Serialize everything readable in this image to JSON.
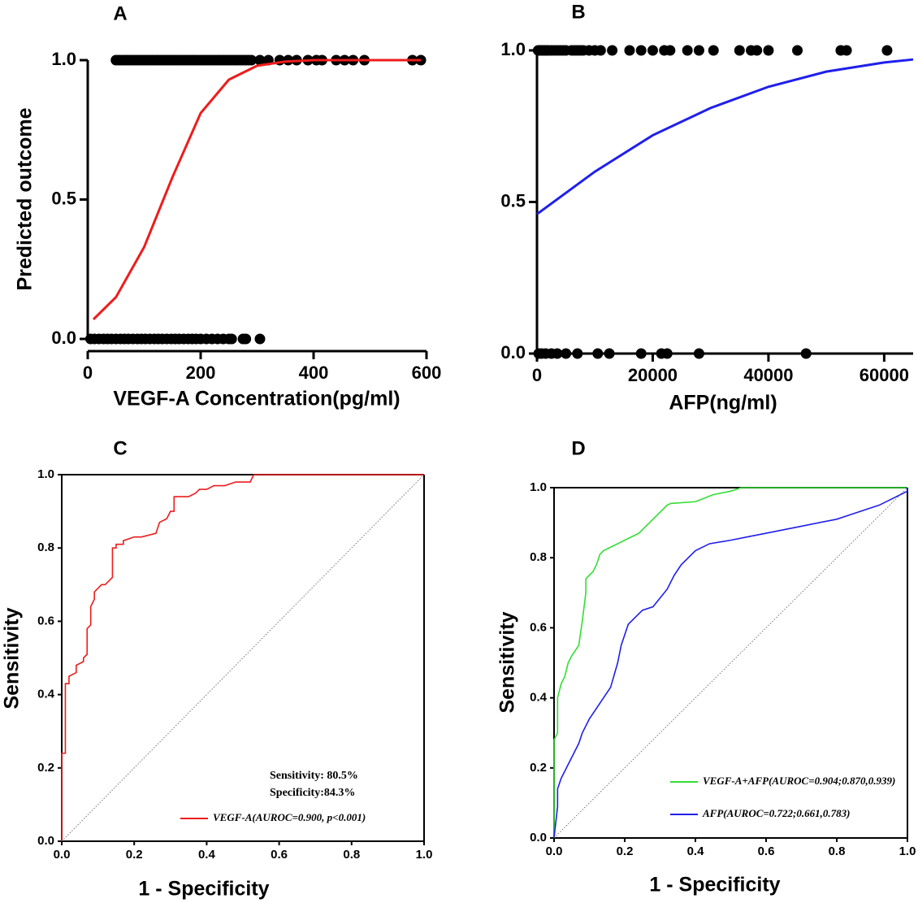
{
  "chart_data": [
    {
      "type": "scatter",
      "title": "A",
      "xlabel": "VEGF-A Concentration(pg/ml)",
      "ylabel": "Predicted outcome",
      "xlim": [
        0,
        600
      ],
      "xticks": [
        0,
        200,
        400,
        600
      ],
      "ylim": [
        0,
        1
      ],
      "yticks": [
        {
          "value": 0,
          "label": "0.0"
        },
        {
          "value": 0.5,
          "label": "0.5"
        },
        {
          "value": 1,
          "label": "1.0"
        }
      ],
      "series": [
        {
          "type": "scatter",
          "color": "#000000",
          "x": [
            50,
            55,
            60,
            65,
            70,
            75,
            80,
            85,
            90,
            95,
            100,
            105,
            110,
            115,
            120,
            125,
            130,
            135,
            140,
            145,
            150,
            155,
            160,
            165,
            170,
            175,
            180,
            185,
            190,
            195,
            200,
            205,
            210,
            215,
            220,
            225,
            230,
            235,
            240,
            245,
            250,
            255,
            260,
            265,
            270,
            275,
            280,
            285,
            290,
            305,
            320,
            340,
            355,
            370,
            390,
            405,
            415,
            440,
            455,
            470,
            490,
            575,
            590
          ],
          "values": [
            1,
            1,
            1,
            1,
            1,
            1,
            1,
            1,
            1,
            1,
            1,
            1,
            1,
            1,
            1,
            1,
            1,
            1,
            1,
            1,
            1,
            1,
            1,
            1,
            1,
            1,
            1,
            1,
            1,
            1,
            1,
            1,
            1,
            1,
            1,
            1,
            1,
            1,
            1,
            1,
            1,
            1,
            1,
            1,
            1,
            1,
            1,
            1,
            1,
            1,
            1,
            1,
            1,
            1,
            1,
            1,
            1,
            1,
            1,
            1,
            1,
            1,
            1
          ]
        },
        {
          "type": "scatter",
          "color": "#000000",
          "x": [
            5,
            12,
            20,
            28,
            35,
            42,
            50,
            58,
            65,
            72,
            80,
            88,
            95,
            102,
            110,
            118,
            125,
            132,
            140,
            148,
            155,
            162,
            170,
            178,
            185,
            192,
            200,
            210,
            220,
            230,
            240,
            250,
            255,
            275,
            280,
            305
          ],
          "values": [
            0,
            0,
            0,
            0,
            0,
            0,
            0,
            0,
            0,
            0,
            0,
            0,
            0,
            0,
            0,
            0,
            0,
            0,
            0,
            0,
            0,
            0,
            0,
            0,
            0,
            0,
            0,
            0,
            0,
            0,
            0,
            0,
            0,
            0,
            0,
            0
          ]
        },
        {
          "type": "line",
          "color": "#ee1c1c",
          "x": [
            10,
            50,
            100,
            150,
            200,
            250,
            300,
            350,
            400,
            450,
            500,
            590
          ],
          "values": [
            0.07,
            0.15,
            0.33,
            0.58,
            0.81,
            0.93,
            0.98,
            0.995,
            1,
            1,
            1,
            1
          ]
        }
      ]
    },
    {
      "type": "scatter",
      "title": "B",
      "xlabel": "AFP(ng/ml)",
      "xlim": [
        0,
        65000
      ],
      "xticks": [
        0,
        20000,
        40000,
        60000
      ],
      "ylim": [
        0,
        1
      ],
      "yticks": [
        {
          "value": 0,
          "label": "0.0"
        },
        {
          "value": 0.5,
          "label": "0.5"
        },
        {
          "value": 1,
          "label": "1.0"
        }
      ],
      "series": [
        {
          "type": "scatter",
          "color": "#000000",
          "x": [
            200,
            500,
            800,
            1100,
            1400,
            1700,
            2000,
            2500,
            3000,
            3500,
            4000,
            4500,
            5000,
            6000,
            6500,
            7000,
            7500,
            8000,
            9000,
            10000,
            11000,
            13000,
            16000,
            18000,
            20000,
            22000,
            23000,
            26000,
            28000,
            30500,
            35000,
            37000,
            38000,
            40000,
            45000,
            52500,
            53500,
            60500
          ],
          "values": [
            1,
            1,
            1,
            1,
            1,
            1,
            1,
            1,
            1,
            1,
            1,
            1,
            1,
            1,
            1,
            1,
            1,
            1,
            1,
            1,
            1,
            1,
            1,
            1,
            1,
            1,
            1,
            1,
            1,
            1,
            1,
            1,
            1,
            1,
            1,
            1,
            1,
            1
          ]
        },
        {
          "type": "scatter",
          "color": "#000000",
          "x": [
            300,
            800,
            1500,
            2500,
            3500,
            5000,
            7000,
            10500,
            12500,
            18000,
            21500,
            22500,
            28000,
            46500
          ],
          "values": [
            0,
            0,
            0,
            0,
            0,
            0,
            0,
            0,
            0,
            0,
            0,
            0,
            0,
            0
          ]
        },
        {
          "type": "line",
          "color": "#1f1fee",
          "x": [
            0,
            10000,
            20000,
            30000,
            40000,
            50000,
            60000,
            65000
          ],
          "values": [
            0.46,
            0.6,
            0.72,
            0.81,
            0.88,
            0.93,
            0.96,
            0.97
          ]
        }
      ]
    },
    {
      "type": "roc",
      "title": "C",
      "xlabel": "1 - Specificity",
      "ylabel": "Sensitivity",
      "annotations": [
        "Sensitivity: 80.5%",
        "Specificity:84.3%"
      ],
      "xlim": [
        0,
        1
      ],
      "xticks": [
        {
          "value": 0,
          "label": "0.0"
        },
        {
          "value": 0.2,
          "label": "0.2"
        },
        {
          "value": 0.4,
          "label": "0.4"
        },
        {
          "value": 0.6,
          "label": "0.6"
        },
        {
          "value": 0.8,
          "label": "0.8"
        },
        {
          "value": 1,
          "label": "1.0"
        }
      ],
      "ylim": [
        0,
        1
      ],
      "yticks": [
        {
          "value": 0,
          "label": "0.0"
        },
        {
          "value": 0.2,
          "label": "0.2"
        },
        {
          "value": 0.4,
          "label": "0.4"
        },
        {
          "value": 0.6,
          "label": "0.6"
        },
        {
          "value": 0.8,
          "label": "0.8"
        },
        {
          "value": 1,
          "label": "1.0"
        }
      ],
      "series": [
        {
          "type": "line",
          "color": "#ee1c1c",
          "name": "VEGF-A(AUROC=0.900,   p<0.001)",
          "x": [
            0,
            0,
            0.01,
            0.01,
            0.02,
            0.02,
            0.04,
            0.04,
            0.06,
            0.06,
            0.07,
            0.07,
            0.08,
            0.08,
            0.09,
            0.09,
            0.1,
            0.11,
            0.12,
            0.14,
            0.14,
            0.15,
            0.15,
            0.17,
            0.17,
            0.2,
            0.22,
            0.26,
            0.27,
            0.29,
            0.3,
            0.31,
            0.31,
            0.35,
            0.37,
            0.38,
            0.4,
            0.42,
            0.45,
            0.48,
            0.52,
            0.53,
            1.0
          ],
          "values": [
            0,
            0.24,
            0.24,
            0.43,
            0.43,
            0.45,
            0.46,
            0.48,
            0.49,
            0.5,
            0.51,
            0.58,
            0.59,
            0.64,
            0.66,
            0.68,
            0.69,
            0.7,
            0.7,
            0.72,
            0.8,
            0.8,
            0.81,
            0.81,
            0.82,
            0.83,
            0.83,
            0.84,
            0.87,
            0.88,
            0.9,
            0.9,
            0.94,
            0.94,
            0.95,
            0.96,
            0.96,
            0.97,
            0.97,
            0.98,
            0.98,
            1.0,
            1.0
          ]
        },
        {
          "type": "diagonal",
          "color": "#555555",
          "x": [
            0,
            1
          ],
          "values": [
            0,
            1
          ]
        }
      ]
    },
    {
      "type": "roc",
      "title": "D",
      "xlabel": "1 - Specificity",
      "ylabel": "Sensitivity",
      "xlim": [
        0,
        1
      ],
      "xticks": [
        {
          "value": 0,
          "label": "0.0"
        },
        {
          "value": 0.2,
          "label": "0.2"
        },
        {
          "value": 0.4,
          "label": "0.4"
        },
        {
          "value": 0.6,
          "label": "0.6"
        },
        {
          "value": 0.8,
          "label": "0.8"
        },
        {
          "value": 1,
          "label": "1.0"
        }
      ],
      "ylim": [
        0,
        1
      ],
      "yticks": [
        {
          "value": 0,
          "label": "0.0"
        },
        {
          "value": 0.2,
          "label": "0.2"
        },
        {
          "value": 0.4,
          "label": "0.4"
        },
        {
          "value": 0.6,
          "label": "0.6"
        },
        {
          "value": 0.8,
          "label": "0.8"
        },
        {
          "value": 1,
          "label": "1.0"
        }
      ],
      "series": [
        {
          "type": "line",
          "color": "#33dd33",
          "name": "VEGF-A+AFP(AUROC=0.904;0.870,0.939)",
          "x": [
            0,
            0,
            0.01,
            0.01,
            0.02,
            0.03,
            0.04,
            0.05,
            0.07,
            0.08,
            0.09,
            0.09,
            0.1,
            0.11,
            0.12,
            0.13,
            0.14,
            0.16,
            0.2,
            0.24,
            0.27,
            0.3,
            0.32,
            0.33,
            0.4,
            0.45,
            0.5,
            0.53,
            1.0
          ],
          "values": [
            0,
            0.28,
            0.3,
            0.4,
            0.44,
            0.46,
            0.5,
            0.52,
            0.55,
            0.62,
            0.7,
            0.74,
            0.75,
            0.76,
            0.78,
            0.81,
            0.82,
            0.83,
            0.85,
            0.87,
            0.9,
            0.93,
            0.95,
            0.955,
            0.96,
            0.98,
            0.99,
            1.0,
            1.0
          ]
        },
        {
          "type": "line",
          "color": "#1f1fee",
          "name": "AFP(AUROC=0.722;0.661,0.783)",
          "x": [
            0,
            0.01,
            0.01,
            0.02,
            0.03,
            0.05,
            0.07,
            0.08,
            0.1,
            0.12,
            0.14,
            0.16,
            0.18,
            0.19,
            0.2,
            0.21,
            0.23,
            0.25,
            0.28,
            0.32,
            0.34,
            0.36,
            0.4,
            0.44,
            0.5,
            0.55,
            0.6,
            0.7,
            0.8,
            0.86,
            0.92,
            0.96,
            0.98,
            1.0,
            1.0
          ],
          "values": [
            0,
            0.09,
            0.14,
            0.17,
            0.19,
            0.23,
            0.27,
            0.3,
            0.34,
            0.37,
            0.4,
            0.43,
            0.5,
            0.55,
            0.58,
            0.61,
            0.63,
            0.65,
            0.66,
            0.71,
            0.75,
            0.78,
            0.82,
            0.84,
            0.85,
            0.86,
            0.87,
            0.89,
            0.91,
            0.93,
            0.95,
            0.97,
            0.98,
            0.99,
            1.0
          ]
        },
        {
          "type": "diagonal",
          "color": "#555555",
          "x": [
            0,
            1
          ],
          "values": [
            0,
            1
          ]
        }
      ]
    }
  ]
}
